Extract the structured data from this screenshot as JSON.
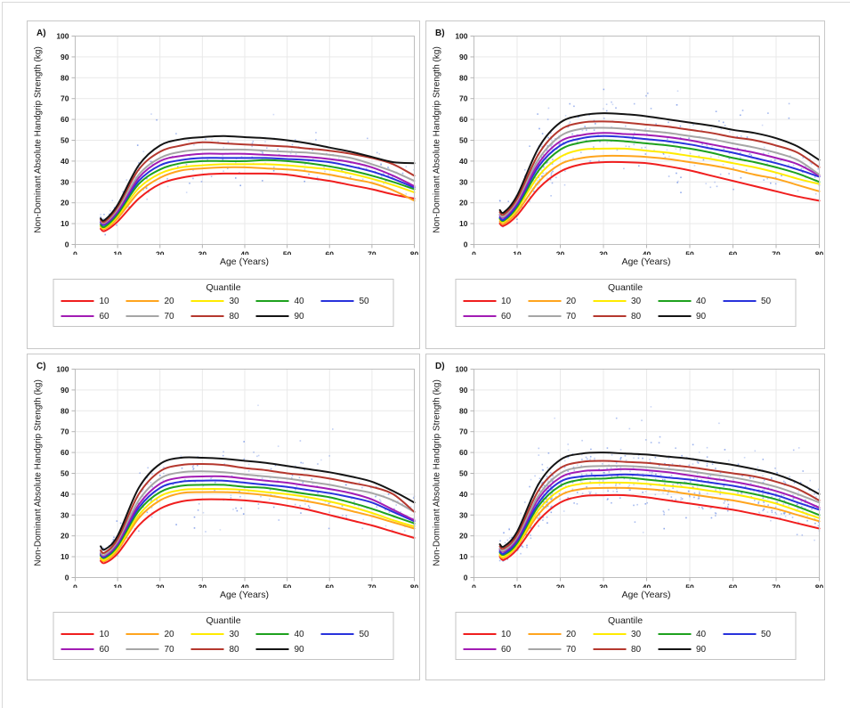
{
  "figure": {
    "legend_title": "Quantile",
    "x_axis_label": "Age (Years)",
    "y_axis_label": "Non-Dominant Absolute Handgrip Strength (kg)",
    "x_ticks": [
      0,
      10,
      20,
      30,
      40,
      50,
      60,
      70,
      80
    ],
    "y_ticks": [
      0,
      10,
      20,
      30,
      40,
      50,
      60,
      70,
      80,
      90,
      100
    ],
    "colors": {
      "grid": "#e9e9e9",
      "frame": "#bebebe",
      "tick": "#b3b3b3",
      "text": "#1a1a1a",
      "panel_border": "#c8c8c8",
      "scatter_point": "#7292e6"
    }
  },
  "chart_data": [
    {
      "panel": "A)",
      "type": "line+scatter",
      "xlabel": "Age (Years)",
      "ylabel": "Non-Dominant Absolute Handgrip Strength (kg)",
      "xlim": [
        0,
        80
      ],
      "ylim": [
        0,
        100
      ],
      "legend_title": "Quantile",
      "ages": [
        6,
        7,
        10,
        15,
        20,
        25,
        30,
        35,
        40,
        45,
        50,
        55,
        60,
        65,
        70,
        75,
        80
      ],
      "series": [
        {
          "name": "10",
          "color": "#f01e1e",
          "values": [
            7.5,
            6.5,
            11,
            22,
            29,
            32,
            33.5,
            34,
            34,
            34,
            33.5,
            32,
            30.5,
            28.5,
            26.5,
            24,
            22
          ]
        },
        {
          "name": "20",
          "color": "#ffa51e",
          "values": [
            8.5,
            7.5,
            12.5,
            25,
            32,
            35.5,
            36.5,
            37,
            37,
            36.5,
            36,
            35,
            33.5,
            31.5,
            29.5,
            26,
            21
          ]
        },
        {
          "name": "30",
          "color": "#ffeb00",
          "values": [
            9,
            8,
            13.5,
            27,
            34,
            37,
            38,
            38.5,
            38.5,
            38.5,
            38,
            37,
            36,
            34,
            31.5,
            28.5,
            25
          ]
        },
        {
          "name": "40",
          "color": "#1ea11e",
          "values": [
            9.5,
            8.5,
            14.5,
            29,
            36,
            39,
            40,
            40,
            40,
            40.5,
            40,
            39,
            37.5,
            35.5,
            33,
            30,
            26.5
          ]
        },
        {
          "name": "50",
          "color": "#2832dc",
          "values": [
            10.5,
            9.5,
            15.5,
            30.5,
            38,
            40.5,
            41.5,
            41.5,
            41.5,
            41.5,
            41,
            40.5,
            39.5,
            37.5,
            35,
            31.5,
            27.3
          ]
        },
        {
          "name": "60",
          "color": "#a21cb4",
          "values": [
            11,
            10,
            16,
            32,
            40,
            42.5,
            43.5,
            43.5,
            43.5,
            43,
            42.5,
            42,
            41,
            39.5,
            37,
            33,
            28
          ]
        },
        {
          "name": "70",
          "color": "#a6a6a6",
          "values": [
            11.5,
            10.5,
            17,
            33.5,
            41.5,
            44.5,
            45.5,
            45.5,
            45.5,
            45,
            44.5,
            44,
            43,
            41.5,
            38.5,
            35,
            30.5
          ]
        },
        {
          "name": "80",
          "color": "#b5382e",
          "values": [
            12,
            11,
            18,
            36,
            44.5,
            47.5,
            49,
            48.5,
            48,
            47.5,
            47,
            46,
            45,
            43.5,
            41.5,
            38.5,
            33
          ]
        },
        {
          "name": "90",
          "color": "#141414",
          "values": [
            12.5,
            11.8,
            19,
            38,
            47.5,
            50.5,
            51.5,
            52,
            51.5,
            51,
            50,
            48.5,
            46.5,
            44.5,
            42,
            39.5,
            39
          ]
        }
      ],
      "scatter": {
        "n": 220,
        "seed": 11,
        "young_frac": 0.4,
        "sd": 0.18,
        "color": "#7292e6"
      }
    },
    {
      "panel": "B)",
      "type": "line+scatter",
      "xlabel": "Age (Years)",
      "ylabel": "Non-Dominant Absolute Handgrip Strength (kg)",
      "xlim": [
        0,
        80
      ],
      "ylim": [
        0,
        100
      ],
      "legend_title": "Quantile",
      "ages": [
        6,
        7,
        10,
        15,
        20,
        25,
        30,
        35,
        40,
        45,
        50,
        55,
        60,
        65,
        70,
        75,
        80
      ],
      "series": [
        {
          "name": "10",
          "color": "#f01e1e",
          "values": [
            10,
            9,
            14,
            27,
            35,
            38.5,
            39.5,
            39.5,
            39,
            37.5,
            35.5,
            33,
            30.5,
            28,
            25.5,
            23,
            21
          ]
        },
        {
          "name": "20",
          "color": "#ffa51e",
          "values": [
            11,
            10,
            15.5,
            30,
            38.5,
            41.5,
            42.5,
            42.5,
            42,
            41,
            39.5,
            38,
            36,
            33.5,
            31.5,
            28.5,
            25.5
          ]
        },
        {
          "name": "30",
          "color": "#ffeb00",
          "values": [
            12,
            11,
            17,
            33,
            42,
            45.5,
            46,
            46,
            45,
            44,
            42.5,
            41,
            39,
            37,
            34.5,
            31.5,
            29
          ]
        },
        {
          "name": "40",
          "color": "#1ea11e",
          "values": [
            12.5,
            11.5,
            18,
            35.5,
            45.5,
            49,
            50,
            49.5,
            48.5,
            47.5,
            46,
            44,
            41.5,
            39.5,
            37,
            34,
            30
          ]
        },
        {
          "name": "50",
          "color": "#2832dc",
          "values": [
            13,
            12,
            19,
            37.5,
            47.5,
            51,
            52,
            51.5,
            50.5,
            49.5,
            48,
            46,
            44,
            41.5,
            39,
            36,
            32.5
          ]
        },
        {
          "name": "60",
          "color": "#a21cb4",
          "values": [
            14,
            13,
            20,
            39,
            49.5,
            52.5,
            53.5,
            53,
            52.5,
            51.5,
            50,
            48,
            46,
            44,
            41.5,
            38.5,
            33
          ]
        },
        {
          "name": "70",
          "color": "#a6a6a6",
          "values": [
            14.5,
            13.5,
            21,
            41,
            52,
            55.5,
            56,
            55.5,
            54.5,
            53.5,
            52,
            50.5,
            48.5,
            46.5,
            44,
            40.5,
            33.5
          ]
        },
        {
          "name": "80",
          "color": "#b5382e",
          "values": [
            15.5,
            14.5,
            22,
            43.5,
            55,
            58.5,
            59,
            58.5,
            57.5,
            56.5,
            55,
            53.5,
            51.5,
            50,
            47.5,
            44,
            37
          ]
        },
        {
          "name": "90",
          "color": "#141414",
          "values": [
            16.5,
            15.5,
            23.5,
            46.5,
            58.5,
            62,
            63,
            62.5,
            61.5,
            60,
            58.5,
            57,
            55,
            53.5,
            51,
            47,
            40.5
          ]
        }
      ],
      "scatter": {
        "n": 420,
        "seed": 23,
        "young_frac": 0.45,
        "sd": 0.17,
        "color": "#7292e6"
      }
    },
    {
      "panel": "C)",
      "type": "line+scatter",
      "xlabel": "Age (Years)",
      "ylabel": "Non-Dominant Absolute Handgrip Strength (kg)",
      "xlim": [
        0,
        80
      ],
      "ylim": [
        0,
        100
      ],
      "legend_title": "Quantile",
      "ages": [
        6,
        7,
        10,
        15,
        20,
        25,
        30,
        35,
        40,
        45,
        50,
        55,
        60,
        65,
        70,
        75,
        80
      ],
      "series": [
        {
          "name": "10",
          "color": "#f01e1e",
          "values": [
            8,
            7,
            11.5,
            25,
            33,
            36.5,
            37.5,
            37.5,
            37,
            36,
            34.5,
            32.5,
            30,
            27.5,
            25,
            22,
            19
          ]
        },
        {
          "name": "20",
          "color": "#ffa51e",
          "values": [
            9,
            8,
            13,
            28.5,
            37,
            40.5,
            41,
            41,
            40.5,
            39.5,
            38,
            36.5,
            34.5,
            32,
            29.5,
            26.5,
            23.5
          ]
        },
        {
          "name": "30",
          "color": "#ffeb00",
          "values": [
            9.5,
            8.5,
            14,
            30,
            39,
            42,
            42.5,
            42.5,
            42,
            41,
            40,
            38.5,
            36.5,
            34,
            31,
            27.5,
            24.5
          ]
        },
        {
          "name": "40",
          "color": "#1ea11e",
          "values": [
            10.5,
            9.5,
            15,
            32,
            41,
            44,
            44.5,
            44.5,
            43.5,
            43,
            41.5,
            40,
            38.5,
            36,
            33,
            29.5,
            26
          ]
        },
        {
          "name": "50",
          "color": "#2832dc",
          "values": [
            11,
            10,
            16,
            33.5,
            43,
            46,
            46.5,
            46.5,
            45.5,
            44.5,
            43.5,
            42,
            40.5,
            38.5,
            36,
            31.5,
            27
          ]
        },
        {
          "name": "60",
          "color": "#a21cb4",
          "values": [
            11.5,
            10.5,
            16.5,
            35,
            45,
            48,
            48.5,
            48.5,
            47.5,
            46.5,
            45.5,
            44,
            42.5,
            40.5,
            37.5,
            32.5,
            27.5
          ]
        },
        {
          "name": "70",
          "color": "#a6a6a6",
          "values": [
            12,
            11,
            17.5,
            37,
            47.5,
            50.5,
            51,
            50.5,
            49.5,
            48.5,
            47.5,
            46,
            44.5,
            42.5,
            40.5,
            37,
            31.5
          ]
        },
        {
          "name": "80",
          "color": "#b5382e",
          "values": [
            13,
            12,
            18.5,
            40,
            51,
            54,
            54.5,
            54,
            52.5,
            51.5,
            50,
            49,
            47.5,
            45.5,
            43.5,
            40,
            31.5
          ]
        },
        {
          "name": "90",
          "color": "#141414",
          "values": [
            15,
            13.5,
            20,
            43,
            54.5,
            57.5,
            57.5,
            57,
            56,
            55,
            53.5,
            52,
            50.5,
            48.5,
            46,
            41.5,
            36
          ]
        }
      ],
      "scatter": {
        "n": 310,
        "seed": 37,
        "young_frac": 0.42,
        "sd": 0.18,
        "color": "#7292e6"
      }
    },
    {
      "panel": "D)",
      "type": "line+scatter",
      "xlabel": "Age (Years)",
      "ylabel": "Non-Dominant Absolute Handgrip Strength (kg)",
      "xlim": [
        0,
        80
      ],
      "ylim": [
        0,
        100
      ],
      "legend_title": "Quantile",
      "ages": [
        6,
        7,
        10,
        15,
        20,
        25,
        30,
        35,
        40,
        45,
        50,
        55,
        60,
        65,
        70,
        75,
        80
      ],
      "series": [
        {
          "name": "10",
          "color": "#f01e1e",
          "values": [
            10,
            8.5,
            13.5,
            27.5,
            36,
            39,
            39.5,
            39.5,
            38.5,
            37,
            35.5,
            34,
            32.5,
            30.5,
            28.5,
            26,
            23.5
          ]
        },
        {
          "name": "20",
          "color": "#ffa51e",
          "values": [
            10.5,
            9.5,
            15,
            30.5,
            39.5,
            42.5,
            43,
            43,
            42.5,
            41.5,
            40,
            38.5,
            37,
            35,
            33,
            30,
            27
          ]
        },
        {
          "name": "30",
          "color": "#ffeb00",
          "values": [
            11,
            10,
            15.5,
            32.5,
            42,
            45,
            45.5,
            45.5,
            45,
            44,
            43,
            41.5,
            40,
            38,
            35.5,
            32,
            28.5
          ]
        },
        {
          "name": "40",
          "color": "#1ea11e",
          "values": [
            12,
            11,
            16.5,
            34.5,
            44,
            47,
            47.5,
            48,
            47,
            46,
            45,
            43.5,
            42,
            40,
            37.5,
            34,
            30
          ]
        },
        {
          "name": "50",
          "color": "#2832dc",
          "values": [
            12.5,
            11.5,
            17.5,
            36,
            46,
            48.5,
            49,
            49.5,
            49,
            48,
            47,
            45.5,
            44,
            42,
            39.5,
            36,
            32.5
          ]
        },
        {
          "name": "60",
          "color": "#a21cb4",
          "values": [
            13.5,
            12.5,
            18.5,
            38,
            48,
            51,
            51.5,
            52,
            51.5,
            50.5,
            49,
            47.5,
            46,
            44,
            41.5,
            38,
            33.5
          ]
        },
        {
          "name": "70",
          "color": "#a6a6a6",
          "values": [
            14,
            13,
            19.5,
            39.5,
            50,
            53,
            53.5,
            53.5,
            53,
            52,
            51,
            49.5,
            48,
            46,
            43.5,
            40,
            36
          ]
        },
        {
          "name": "80",
          "color": "#b5382e",
          "values": [
            15,
            14,
            20.5,
            42,
            52.5,
            55.5,
            56,
            55.5,
            55,
            54,
            53,
            51.5,
            50,
            48.5,
            46,
            42.5,
            37
          ]
        },
        {
          "name": "90",
          "color": "#141414",
          "values": [
            16,
            15,
            22,
            45,
            56.5,
            59.5,
            60,
            59.5,
            59,
            58,
            57,
            55.5,
            54,
            52,
            49.5,
            45.5,
            40
          ]
        }
      ],
      "scatter": {
        "n": 820,
        "seed": 49,
        "young_frac": 0.4,
        "sd": 0.17,
        "color": "#7292e6"
      }
    }
  ]
}
